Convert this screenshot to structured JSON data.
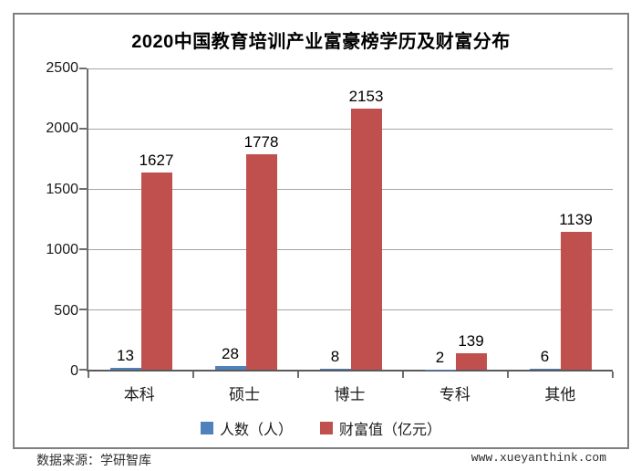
{
  "page": {
    "source_note": "数据来源：学研智库",
    "website": "www.xueyanthink.com"
  },
  "colors": {
    "people_series": "#4F81BD",
    "wealth_series": "#C0504D",
    "gridline": "#A6A6A6",
    "axis": "#6E6E6E",
    "frame_border": "#7F7F7F"
  },
  "chart_data": {
    "type": "bar",
    "title": "2020中国教育培训产业富豪榜学历及财富分布",
    "categories": [
      "本科",
      "硕士",
      "博士",
      "专科",
      "其他"
    ],
    "series": [
      {
        "name": "人数（人）",
        "color": "#4F81BD",
        "values": [
          13,
          28,
          8,
          2,
          6
        ]
      },
      {
        "name": "财富值（亿元）",
        "color": "#C0504D",
        "values": [
          1627,
          1778,
          2153,
          139,
          1139
        ]
      }
    ],
    "xlabel": "",
    "ylabel": "",
    "ylim": [
      0,
      2500
    ],
    "yticks": [
      0,
      500,
      1000,
      1500,
      2000,
      2500
    ],
    "grid": true,
    "data_labels": true,
    "legend_position": "bottom"
  }
}
